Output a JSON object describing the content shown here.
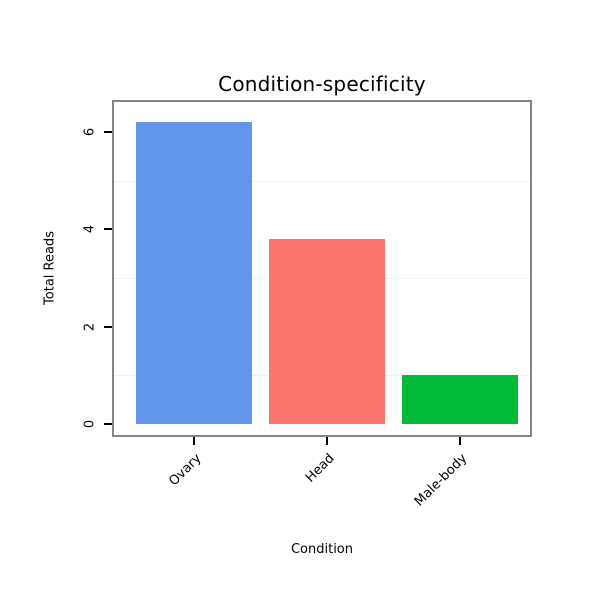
{
  "chart_data": {
    "type": "bar",
    "title": "Condition-specificity",
    "xlabel": "Condition",
    "ylabel": "Total Reads",
    "categories": [
      "Ovary",
      "Head",
      "Male-body"
    ],
    "values": [
      6.2,
      3.8,
      1.0
    ],
    "bar_colors": [
      "#6495ED",
      "#F8766D",
      "#00BA38"
    ],
    "ylim": [
      0,
      6.65
    ],
    "yticks": [
      0,
      2,
      4,
      6
    ],
    "minor_gridlines": [
      1,
      3,
      5
    ],
    "grid": "faint horizontal minor gridlines only",
    "legend": "none",
    "x_tick_label_rotation_deg": 45,
    "plot_border_color": "#848484"
  }
}
